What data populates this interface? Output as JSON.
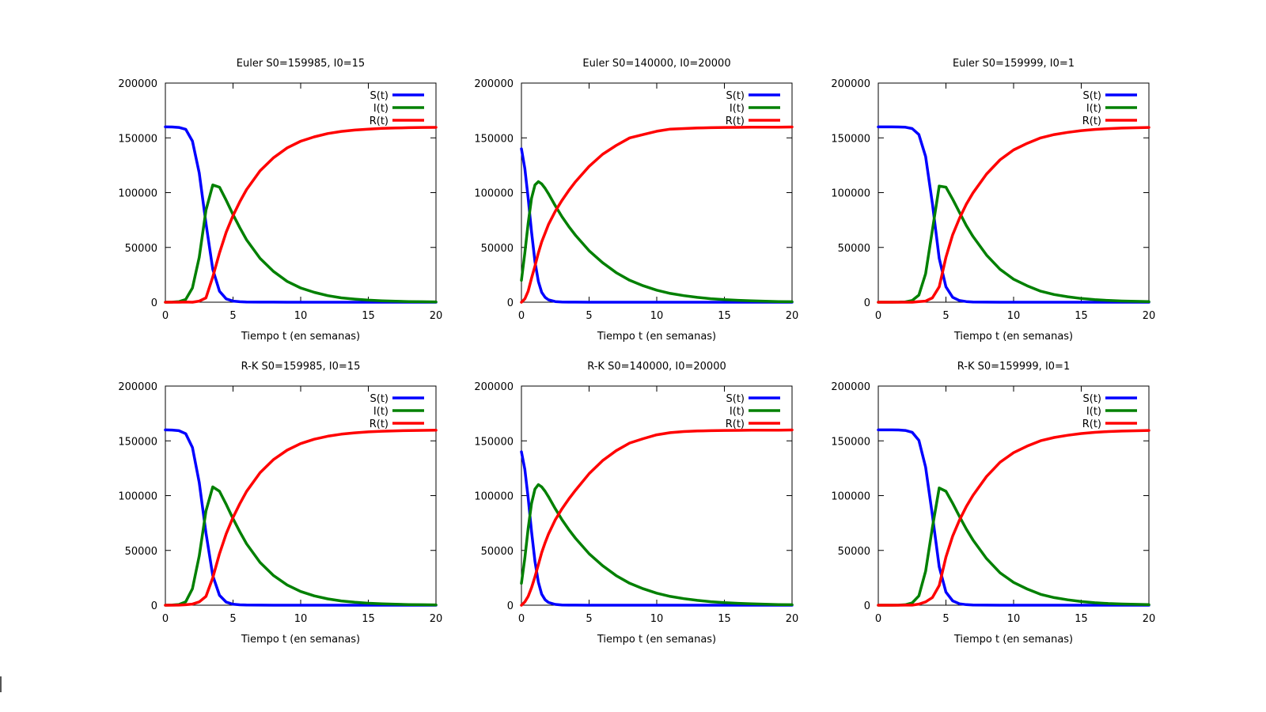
{
  "colors": {
    "S": "#0000ff",
    "I": "#008000",
    "R": "#ff0000"
  },
  "chart_data": [
    {
      "type": "line",
      "title": "Euler S0=159985, I0=15",
      "xlabel": "Tiempo t (en semanas)",
      "ylabel": "",
      "xlim": [
        0,
        20
      ],
      "ylim": [
        0,
        200000
      ],
      "xticks": [
        "0",
        "5",
        "10",
        "15",
        "20"
      ],
      "yticks": [
        "0",
        "50000",
        "100000",
        "150000",
        "200000"
      ],
      "grid": false,
      "legend": "top-right",
      "x": [
        0,
        0.5,
        1,
        1.5,
        2,
        2.5,
        3,
        3.5,
        4,
        4.5,
        5,
        5.5,
        6,
        7,
        8,
        9,
        10,
        11,
        12,
        13,
        14,
        15,
        16,
        17,
        18,
        19,
        20
      ],
      "series": [
        {
          "name": "S(t)",
          "values": [
            159985,
            159900,
            159500,
            157800,
            147000,
            118000,
            72000,
            30000,
            10000,
            3000,
            1000,
            400,
            200,
            80,
            40,
            20,
            10,
            5,
            3,
            2,
            1,
            1,
            0,
            0,
            0,
            0,
            0
          ]
        },
        {
          "name": "I(t)",
          "values": [
            15,
            100,
            500,
            2500,
            13000,
            41000,
            84000,
            107000,
            105000,
            93000,
            80000,
            68000,
            57000,
            40000,
            28000,
            19000,
            13000,
            9000,
            6000,
            4000,
            2800,
            1900,
            1300,
            900,
            600,
            400,
            300
          ]
        },
        {
          "name": "R(t)",
          "values": [
            0,
            0,
            0,
            200,
            0,
            1000,
            4000,
            23000,
            45000,
            64000,
            79000,
            91700,
            102800,
            119900,
            131900,
            140900,
            146900,
            150900,
            153900,
            155900,
            157100,
            158000,
            158600,
            159000,
            159300,
            159500,
            159600
          ]
        }
      ]
    },
    {
      "type": "line",
      "title": "Euler S0=140000, I0=20000",
      "xlabel": "Tiempo t (en semanas)",
      "ylabel": "",
      "xlim": [
        0,
        20
      ],
      "ylim": [
        0,
        200000
      ],
      "xticks": [
        "0",
        "5",
        "10",
        "15",
        "20"
      ],
      "yticks": [
        "0",
        "50000",
        "100000",
        "150000",
        "200000"
      ],
      "grid": false,
      "legend": "top-right",
      "x": [
        0,
        0.25,
        0.5,
        0.75,
        1,
        1.25,
        1.5,
        1.75,
        2,
        2.5,
        3,
        3.5,
        4,
        5,
        6,
        7,
        8,
        9,
        10,
        11,
        12,
        13,
        14,
        15,
        16,
        17,
        18,
        19,
        20
      ],
      "series": [
        {
          "name": "S(t)",
          "values": [
            140000,
            122000,
            95000,
            64000,
            37000,
            19000,
            9000,
            4500,
            2200,
            600,
            200,
            80,
            40,
            15,
            5,
            2,
            1,
            0,
            0,
            0,
            0,
            0,
            0,
            0,
            0,
            0,
            0,
            0,
            0
          ]
        },
        {
          "name": "I(t)",
          "values": [
            20000,
            45000,
            72000,
            95000,
            107000,
            110000,
            108000,
            104000,
            99000,
            88000,
            78000,
            69000,
            61000,
            47000,
            36000,
            27000,
            20000,
            15000,
            11000,
            8000,
            6000,
            4400,
            3200,
            2300,
            1700,
            1200,
            900,
            600,
            400
          ]
        },
        {
          "name": "R(t)",
          "values": [
            0,
            3000,
            10000,
            22000,
            33000,
            45000,
            55000,
            63000,
            71000,
            83000,
            93000,
            102000,
            110000,
            124000,
            135000,
            143000,
            150000,
            153000,
            156000,
            158000,
            158500,
            159000,
            159300,
            159500,
            159600,
            159700,
            159800,
            159800,
            159900
          ]
        }
      ]
    },
    {
      "type": "line",
      "title": "Euler S0=159999, I0=1",
      "xlabel": "Tiempo t (en semanas)",
      "ylabel": "",
      "xlim": [
        0,
        20
      ],
      "ylim": [
        0,
        200000
      ],
      "xticks": [
        "0",
        "5",
        "10",
        "15",
        "20"
      ],
      "yticks": [
        "0",
        "50000",
        "100000",
        "150000",
        "200000"
      ],
      "grid": false,
      "legend": "top-right",
      "x": [
        0,
        0.5,
        1,
        1.5,
        2,
        2.5,
        3,
        3.5,
        4,
        4.5,
        5,
        5.5,
        6,
        6.5,
        7,
        8,
        9,
        10,
        11,
        12,
        13,
        14,
        15,
        16,
        17,
        18,
        19,
        20
      ],
      "series": [
        {
          "name": "S(t)",
          "values": [
            159999,
            159998,
            159990,
            159950,
            159700,
            158500,
            153000,
            133000,
            90000,
            40000,
            14000,
            4500,
            1500,
            600,
            250,
            60,
            20,
            8,
            3,
            1,
            0,
            0,
            0,
            0,
            0,
            0,
            0,
            0
          ]
        },
        {
          "name": "I(t)",
          "values": [
            1,
            2,
            10,
            50,
            300,
            1500,
            6500,
            26000,
            66000,
            106000,
            105000,
            94000,
            82000,
            70000,
            60000,
            43000,
            30000,
            21000,
            15000,
            10000,
            7000,
            5000,
            3400,
            2300,
            1600,
            1100,
            800,
            500
          ]
        },
        {
          "name": "R(t)",
          "values": [
            0,
            0,
            0,
            0,
            0,
            0,
            500,
            1000,
            4000,
            14000,
            41000,
            61500,
            76500,
            89400,
            99750,
            116940,
            129980,
            138990,
            144990,
            149990,
            152990,
            154990,
            156590,
            157690,
            158390,
            158890,
            159190,
            159490
          ]
        }
      ]
    },
    {
      "type": "line",
      "title": "R-K S0=159985, I0=15",
      "xlabel": "Tiempo t (en semanas)",
      "ylabel": "",
      "xlim": [
        0,
        20
      ],
      "ylim": [
        0,
        200000
      ],
      "xticks": [
        "0",
        "5",
        "10",
        "15",
        "20"
      ],
      "yticks": [
        "0",
        "50000",
        "100000",
        "150000",
        "200000"
      ],
      "grid": false,
      "legend": "top-right",
      "x": [
        0,
        0.5,
        1,
        1.5,
        2,
        2.5,
        3,
        3.5,
        4,
        4.5,
        5,
        5.5,
        6,
        7,
        8,
        9,
        10,
        11,
        12,
        13,
        14,
        15,
        16,
        17,
        18,
        19,
        20
      ],
      "series": [
        {
          "name": "S(t)",
          "values": [
            159985,
            159850,
            159300,
            156500,
            144000,
            112000,
            66000,
            27000,
            9000,
            2800,
            900,
            350,
            180,
            70,
            35,
            18,
            9,
            5,
            3,
            2,
            1,
            1,
            0,
            0,
            0,
            0,
            0
          ]
        },
        {
          "name": "I(t)",
          "values": [
            15,
            130,
            650,
            3100,
            15000,
            45000,
            86000,
            108000,
            104000,
            92000,
            79000,
            67000,
            56000,
            39000,
            27000,
            18500,
            12500,
            8500,
            5800,
            3900,
            2700,
            1800,
            1200,
            850,
            580,
            400,
            280
          ]
        },
        {
          "name": "R(t)",
          "values": [
            0,
            20,
            50,
            400,
            1000,
            3000,
            8000,
            25000,
            47000,
            65200,
            80100,
            92650,
            103820,
            120930,
            132965,
            141482,
            147491,
            151495,
            154197,
            156098,
            157299,
            158199,
            158800,
            159150,
            159420,
            159600,
            159720
          ]
        }
      ]
    },
    {
      "type": "line",
      "title": "R-K S0=140000, I0=20000",
      "xlabel": "Tiempo t (en semanas)",
      "ylabel": "",
      "xlim": [
        0,
        20
      ],
      "ylim": [
        0,
        200000
      ],
      "xticks": [
        "0",
        "5",
        "10",
        "15",
        "20"
      ],
      "yticks": [
        "0",
        "50000",
        "100000",
        "150000",
        "200000"
      ],
      "grid": false,
      "legend": "top-right",
      "x": [
        0,
        0.25,
        0.5,
        0.75,
        1,
        1.25,
        1.5,
        1.75,
        2,
        2.5,
        3,
        3.5,
        4,
        5,
        6,
        7,
        8,
        9,
        10,
        11,
        12,
        13,
        14,
        15,
        16,
        17,
        18,
        19,
        20
      ],
      "series": [
        {
          "name": "S(t)",
          "values": [
            140000,
            124000,
            98000,
            67000,
            40000,
            21000,
            10000,
            5000,
            2500,
            700,
            230,
            90,
            45,
            16,
            6,
            2,
            1,
            0,
            0,
            0,
            0,
            0,
            0,
            0,
            0,
            0,
            0,
            0,
            0
          ]
        },
        {
          "name": "I(t)",
          "values": [
            20000,
            43000,
            70000,
            93000,
            106000,
            110000,
            108000,
            104000,
            99000,
            88000,
            78000,
            69000,
            61000,
            47000,
            36000,
            27000,
            20000,
            15000,
            11000,
            8000,
            6000,
            4400,
            3200,
            2300,
            1700,
            1200,
            900,
            600,
            400
          ]
        },
        {
          "name": "R(t)",
          "values": [
            0,
            3000,
            8000,
            16000,
            26000,
            37000,
            48000,
            57000,
            65000,
            78000,
            88000,
            97000,
            105000,
            120000,
            132000,
            141000,
            148000,
            152000,
            155500,
            157500,
            158500,
            159000,
            159300,
            159500,
            159600,
            159700,
            159800,
            159800,
            159900
          ]
        }
      ]
    },
    {
      "type": "line",
      "title": "R-K S0=159999, I0=1",
      "xlabel": "Tiempo t (en semanas)",
      "ylabel": "",
      "xlim": [
        0,
        20
      ],
      "ylim": [
        0,
        200000
      ],
      "xticks": [
        "0",
        "5",
        "10",
        "15",
        "20"
      ],
      "yticks": [
        "0",
        "50000",
        "100000",
        "150000",
        "200000"
      ],
      "grid": false,
      "legend": "top-right",
      "x": [
        0,
        0.5,
        1,
        1.5,
        2,
        2.5,
        3,
        3.5,
        4,
        4.5,
        5,
        5.5,
        6,
        6.5,
        7,
        8,
        9,
        10,
        11,
        12,
        13,
        14,
        15,
        16,
        17,
        18,
        19,
        20
      ],
      "series": [
        {
          "name": "S(t)",
          "values": [
            159999,
            159997,
            159985,
            159920,
            159500,
            157800,
            150500,
            126000,
            82000,
            35000,
            12000,
            4000,
            1300,
            500,
            220,
            55,
            18,
            7,
            3,
            1,
            0,
            0,
            0,
            0,
            0,
            0,
            0,
            0
          ]
        },
        {
          "name": "I(t)",
          "values": [
            1,
            3,
            15,
            80,
            450,
            2100,
            8500,
            31000,
            71000,
            107000,
            104000,
            93000,
            81000,
            69500,
            59500,
            42500,
            29500,
            20800,
            14800,
            9900,
            6900,
            4900,
            3300,
            2250,
            1550,
            1080,
            770,
            500
          ]
        },
        {
          "name": "R(t)",
          "values": [
            0,
            0,
            0,
            0,
            50,
            100,
            1000,
            3000,
            7000,
            18000,
            44000,
            63000,
            77700,
            90000,
            100280,
            117445,
            130482,
            139193,
            145197,
            150099,
            153100,
            155100,
            156700,
            157750,
            158450,
            158920,
            159230,
            159500
          ]
        }
      ]
    }
  ]
}
